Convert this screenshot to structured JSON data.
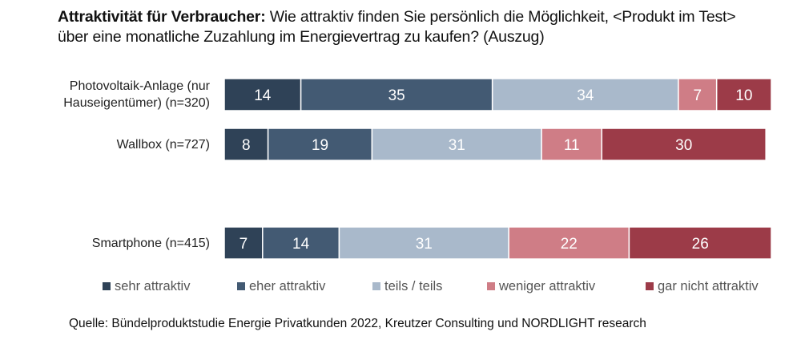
{
  "chart_data": {
    "type": "bar",
    "orientation": "horizontal",
    "stacked": true,
    "title_bold": "Attraktivität für Verbraucher:",
    "title_rest_line1": " Wie attraktiv finden Sie persönlich die Möglichkeit, <Produkt im Test>",
    "title_line2": "über eine monatliche Zuzahlung im Energievertrag zu kaufen? (Auszug)",
    "categories": [
      {
        "lines": [
          "Photovoltaik-Anlage (nur",
          "Hauseigentümer) (n=320)"
        ]
      },
      {
        "lines": [
          "Wallbox (n=727)"
        ]
      },
      {
        "lines": [
          "Smartphone (n=415)"
        ]
      }
    ],
    "series": [
      {
        "name": "sehr attraktiv",
        "color": "#2f4257",
        "values": [
          14,
          8,
          7
        ]
      },
      {
        "name": "eher attraktiv",
        "color": "#435a73",
        "values": [
          35,
          19,
          14
        ]
      },
      {
        "name": "teils / teils",
        "color": "#a9b9cb",
        "values": [
          34,
          31,
          31
        ]
      },
      {
        "name": "weniger attraktiv",
        "color": "#cf7d86",
        "values": [
          7,
          11,
          22
        ]
      },
      {
        "name": "gar nicht attraktiv",
        "color": "#9c3b48",
        "values": [
          10,
          30,
          26
        ]
      }
    ],
    "xlim": [
      0,
      100
    ],
    "unit": "%",
    "legend_position": "bottom",
    "grid": false,
    "source": "Quelle: Bündelproduktstudie Energie Privatkunden 2022, Kreutzer Consulting und NORDLIGHT research"
  }
}
